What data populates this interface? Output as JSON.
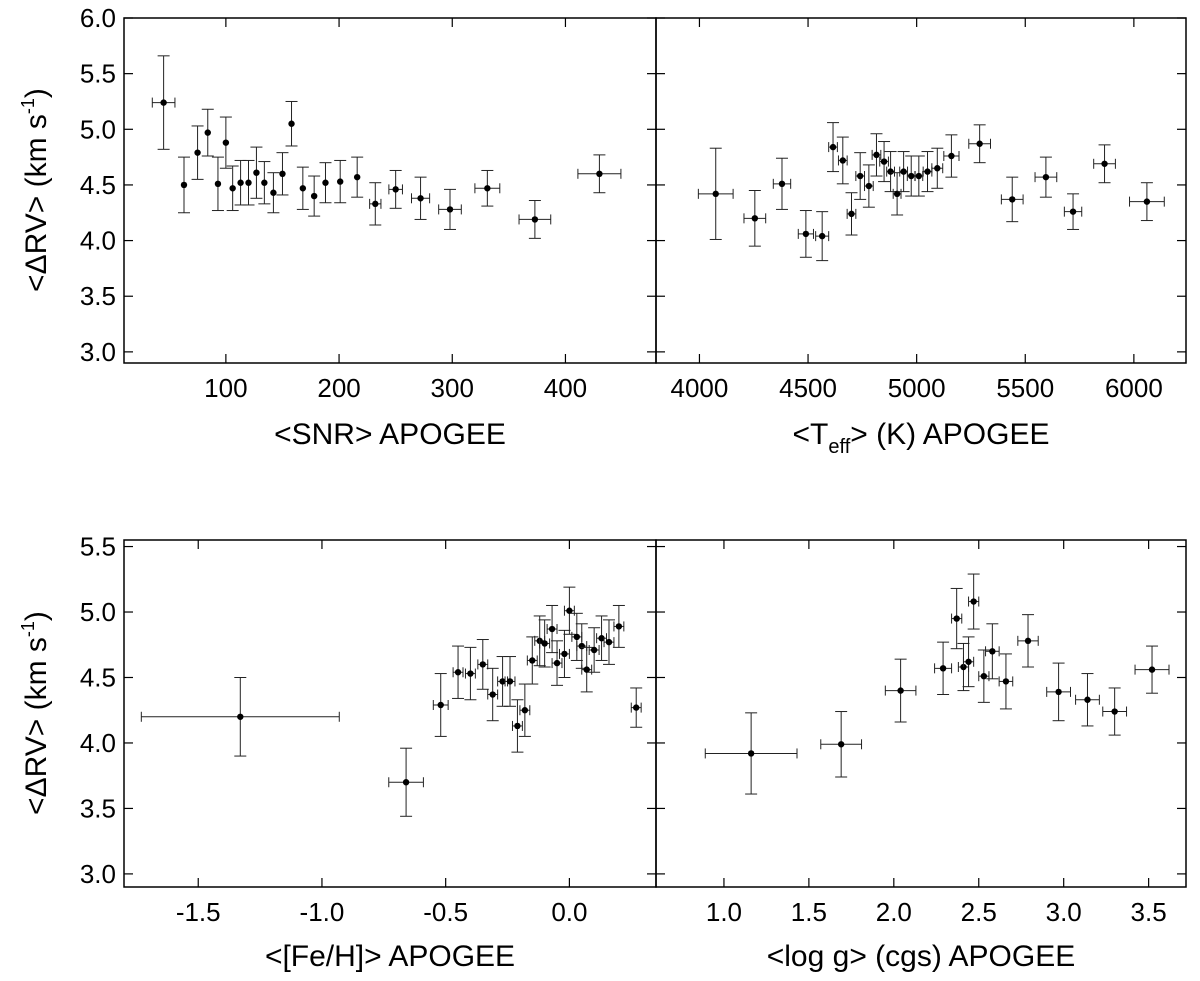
{
  "chart_data": [
    {
      "type": "scatter",
      "panel": "top-left",
      "xlabel": "<SNR> APOGEE",
      "ylabel": "<ΔRV> (km s-1)",
      "ylabel_parts": {
        "main": "<ΔRV> (km s",
        "sup": "-1",
        "end": ")"
      },
      "xlim": [
        10,
        480
      ],
      "ylim": [
        2.9,
        6.0
      ],
      "xticks": [
        100,
        200,
        300,
        400
      ],
      "yticks": [
        "3.0",
        "3.5",
        "4.0",
        "4.5",
        "5.0",
        "5.5",
        "6.0"
      ],
      "points": [
        {
          "x": 45,
          "y": 5.24,
          "ex": 10,
          "ey": 0.42
        },
        {
          "x": 63,
          "y": 4.5,
          "ex": 0,
          "ey": 0.25
        },
        {
          "x": 75,
          "y": 4.79,
          "ex": 0,
          "ey": 0.24
        },
        {
          "x": 84,
          "y": 4.97,
          "ex": 0,
          "ey": 0.21
        },
        {
          "x": 93,
          "y": 4.51,
          "ex": 0,
          "ey": 0.24
        },
        {
          "x": 100,
          "y": 4.88,
          "ex": 0,
          "ey": 0.23
        },
        {
          "x": 106,
          "y": 4.47,
          "ex": 0,
          "ey": 0.2
        },
        {
          "x": 113,
          "y": 4.52,
          "ex": 0,
          "ey": 0.2
        },
        {
          "x": 120,
          "y": 4.52,
          "ex": 0,
          "ey": 0.2
        },
        {
          "x": 127,
          "y": 4.61,
          "ex": 0,
          "ey": 0.23
        },
        {
          "x": 134,
          "y": 4.52,
          "ex": 0,
          "ey": 0.19
        },
        {
          "x": 142,
          "y": 4.43,
          "ex": 0,
          "ey": 0.18
        },
        {
          "x": 150,
          "y": 4.6,
          "ex": 0,
          "ey": 0.19
        },
        {
          "x": 158,
          "y": 5.05,
          "ex": 0,
          "ey": 0.2
        },
        {
          "x": 168,
          "y": 4.47,
          "ex": 0,
          "ey": 0.19
        },
        {
          "x": 178,
          "y": 4.4,
          "ex": 0,
          "ey": 0.18
        },
        {
          "x": 188,
          "y": 4.52,
          "ex": 0,
          "ey": 0.18
        },
        {
          "x": 201,
          "y": 4.53,
          "ex": 0,
          "ey": 0.19
        },
        {
          "x": 216,
          "y": 4.57,
          "ex": 0,
          "ey": 0.18
        },
        {
          "x": 232,
          "y": 4.33,
          "ex": 5,
          "ey": 0.19
        },
        {
          "x": 250,
          "y": 4.46,
          "ex": 6,
          "ey": 0.17
        },
        {
          "x": 272,
          "y": 4.38,
          "ex": 8,
          "ey": 0.19
        },
        {
          "x": 298,
          "y": 4.28,
          "ex": 10,
          "ey": 0.18
        },
        {
          "x": 331,
          "y": 4.47,
          "ex": 11,
          "ey": 0.16
        },
        {
          "x": 373,
          "y": 4.19,
          "ex": 14,
          "ey": 0.17
        },
        {
          "x": 430,
          "y": 4.6,
          "ex": 19,
          "ey": 0.17
        }
      ]
    },
    {
      "type": "scatter",
      "panel": "top-right",
      "xlabel": "<Teff> (K) APOGEE",
      "xlabel_parts": {
        "main": "<T",
        "sub": "eff",
        "end": "> (K) APOGEE"
      },
      "xlim": [
        3800,
        6240
      ],
      "ylim": [
        2.9,
        6.0
      ],
      "xticks": [
        4000,
        4500,
        5000,
        5500,
        6000
      ],
      "points": [
        {
          "x": 4075,
          "y": 4.42,
          "ex": 80,
          "ey": 0.41
        },
        {
          "x": 4255,
          "y": 4.2,
          "ex": 50,
          "ey": 0.25
        },
        {
          "x": 4380,
          "y": 4.51,
          "ex": 40,
          "ey": 0.23
        },
        {
          "x": 4490,
          "y": 4.06,
          "ex": 35,
          "ey": 0.21
        },
        {
          "x": 4565,
          "y": 4.04,
          "ex": 30,
          "ey": 0.22
        },
        {
          "x": 4615,
          "y": 4.84,
          "ex": 20,
          "ey": 0.22
        },
        {
          "x": 4660,
          "y": 4.72,
          "ex": 20,
          "ey": 0.21
        },
        {
          "x": 4700,
          "y": 4.24,
          "ex": 20,
          "ey": 0.19
        },
        {
          "x": 4740,
          "y": 4.58,
          "ex": 20,
          "ey": 0.21
        },
        {
          "x": 4780,
          "y": 4.49,
          "ex": 20,
          "ey": 0.19
        },
        {
          "x": 4815,
          "y": 4.77,
          "ex": 20,
          "ey": 0.19
        },
        {
          "x": 4850,
          "y": 4.71,
          "ex": 20,
          "ey": 0.18
        },
        {
          "x": 4880,
          "y": 4.62,
          "ex": 18,
          "ey": 0.18
        },
        {
          "x": 4910,
          "y": 4.42,
          "ex": 18,
          "ey": 0.19
        },
        {
          "x": 4940,
          "y": 4.62,
          "ex": 18,
          "ey": 0.18
        },
        {
          "x": 4975,
          "y": 4.58,
          "ex": 18,
          "ey": 0.18
        },
        {
          "x": 5010,
          "y": 4.58,
          "ex": 18,
          "ey": 0.18
        },
        {
          "x": 5050,
          "y": 4.62,
          "ex": 20,
          "ey": 0.18
        },
        {
          "x": 5095,
          "y": 4.65,
          "ex": 25,
          "ey": 0.18
        },
        {
          "x": 5160,
          "y": 4.76,
          "ex": 35,
          "ey": 0.19
        },
        {
          "x": 5290,
          "y": 4.87,
          "ex": 50,
          "ey": 0.17
        },
        {
          "x": 5440,
          "y": 4.37,
          "ex": 50,
          "ey": 0.2
        },
        {
          "x": 5595,
          "y": 4.57,
          "ex": 50,
          "ey": 0.18
        },
        {
          "x": 5720,
          "y": 4.26,
          "ex": 40,
          "ey": 0.16
        },
        {
          "x": 5865,
          "y": 4.69,
          "ex": 50,
          "ey": 0.17
        },
        {
          "x": 6060,
          "y": 4.35,
          "ex": 80,
          "ey": 0.17
        }
      ]
    },
    {
      "type": "scatter",
      "panel": "bottom-left",
      "xlabel": "<[Fe/H]> APOGEE",
      "ylabel": "<ΔRV> (km s-1)",
      "ylabel_parts": {
        "main": "<ΔRV> (km s",
        "sup": "-1",
        "end": ")"
      },
      "xlim": [
        -1.8,
        0.35
      ],
      "ylim": [
        2.9,
        5.55
      ],
      "xticks": [
        "-1.5",
        "-1.0",
        "-0.5",
        "0.0"
      ],
      "xtick_values": [
        -1.5,
        -1.0,
        -0.5,
        0.0
      ],
      "yticks": [
        "3.0",
        "3.5",
        "4.0",
        "4.5",
        "5.0",
        "5.5"
      ],
      "points": [
        {
          "x": -1.33,
          "y": 4.2,
          "ex": 0.4,
          "ey": 0.3
        },
        {
          "x": -0.66,
          "y": 3.7,
          "ex": 0.07,
          "ey": 0.26
        },
        {
          "x": -0.52,
          "y": 4.29,
          "ex": 0.03,
          "ey": 0.24
        },
        {
          "x": -0.45,
          "y": 4.54,
          "ex": 0.02,
          "ey": 0.2
        },
        {
          "x": -0.4,
          "y": 4.53,
          "ex": 0.02,
          "ey": 0.2
        },
        {
          "x": -0.35,
          "y": 4.6,
          "ex": 0.02,
          "ey": 0.19
        },
        {
          "x": -0.31,
          "y": 4.37,
          "ex": 0.02,
          "ey": 0.2
        },
        {
          "x": -0.27,
          "y": 4.47,
          "ex": 0.02,
          "ey": 0.19
        },
        {
          "x": -0.24,
          "y": 4.47,
          "ex": 0.02,
          "ey": 0.19
        },
        {
          "x": -0.21,
          "y": 4.13,
          "ex": 0.02,
          "ey": 0.2
        },
        {
          "x": -0.18,
          "y": 4.25,
          "ex": 0.02,
          "ey": 0.2
        },
        {
          "x": -0.15,
          "y": 4.63,
          "ex": 0.02,
          "ey": 0.18
        },
        {
          "x": -0.12,
          "y": 4.78,
          "ex": 0.02,
          "ey": 0.19
        },
        {
          "x": -0.1,
          "y": 4.76,
          "ex": 0.02,
          "ey": 0.18
        },
        {
          "x": -0.07,
          "y": 4.87,
          "ex": 0.02,
          "ey": 0.18
        },
        {
          "x": -0.05,
          "y": 4.61,
          "ex": 0.02,
          "ey": 0.17
        },
        {
          "x": -0.02,
          "y": 4.68,
          "ex": 0.02,
          "ey": 0.18
        },
        {
          "x": 0.0,
          "y": 5.01,
          "ex": 0.02,
          "ey": 0.18
        },
        {
          "x": 0.03,
          "y": 4.81,
          "ex": 0.02,
          "ey": 0.18
        },
        {
          "x": 0.05,
          "y": 4.74,
          "ex": 0.02,
          "ey": 0.17
        },
        {
          "x": 0.07,
          "y": 4.56,
          "ex": 0.02,
          "ey": 0.17
        },
        {
          "x": 0.1,
          "y": 4.71,
          "ex": 0.02,
          "ey": 0.17
        },
        {
          "x": 0.13,
          "y": 4.8,
          "ex": 0.02,
          "ey": 0.17
        },
        {
          "x": 0.16,
          "y": 4.77,
          "ex": 0.02,
          "ey": 0.17
        },
        {
          "x": 0.2,
          "y": 4.89,
          "ex": 0.02,
          "ey": 0.16
        },
        {
          "x": 0.27,
          "y": 4.27,
          "ex": 0.02,
          "ey": 0.15
        }
      ]
    },
    {
      "type": "scatter",
      "panel": "bottom-right",
      "xlabel": "<log g> (cgs) APOGEE",
      "xlim": [
        0.6,
        3.72
      ],
      "ylim": [
        2.9,
        5.55
      ],
      "xticks": [
        "1.0",
        "1.5",
        "2.0",
        "2.5",
        "3.0",
        "3.5"
      ],
      "xtick_values": [
        1.0,
        1.5,
        2.0,
        2.5,
        3.0,
        3.5
      ],
      "points": [
        {
          "x": 1.16,
          "y": 3.92,
          "ex": 0.27,
          "ey": 0.31
        },
        {
          "x": 1.69,
          "y": 3.99,
          "ex": 0.12,
          "ey": 0.25
        },
        {
          "x": 2.04,
          "y": 4.4,
          "ex": 0.09,
          "ey": 0.24
        },
        {
          "x": 2.29,
          "y": 4.57,
          "ex": 0.05,
          "ey": 0.2
        },
        {
          "x": 2.37,
          "y": 4.95,
          "ex": 0.03,
          "ey": 0.23
        },
        {
          "x": 2.41,
          "y": 4.58,
          "ex": 0.03,
          "ey": 0.18
        },
        {
          "x": 2.44,
          "y": 4.62,
          "ex": 0.03,
          "ey": 0.19
        },
        {
          "x": 2.47,
          "y": 5.08,
          "ex": 0.03,
          "ey": 0.21
        },
        {
          "x": 2.53,
          "y": 4.51,
          "ex": 0.03,
          "ey": 0.2
        },
        {
          "x": 2.58,
          "y": 4.7,
          "ex": 0.04,
          "ey": 0.21
        },
        {
          "x": 2.66,
          "y": 4.47,
          "ex": 0.04,
          "ey": 0.21
        },
        {
          "x": 2.79,
          "y": 4.78,
          "ex": 0.06,
          "ey": 0.2
        },
        {
          "x": 2.97,
          "y": 4.39,
          "ex": 0.07,
          "ey": 0.22
        },
        {
          "x": 3.14,
          "y": 4.33,
          "ex": 0.07,
          "ey": 0.2
        },
        {
          "x": 3.3,
          "y": 4.24,
          "ex": 0.07,
          "ey": 0.18
        },
        {
          "x": 3.52,
          "y": 4.56,
          "ex": 0.1,
          "ey": 0.18
        }
      ]
    }
  ]
}
